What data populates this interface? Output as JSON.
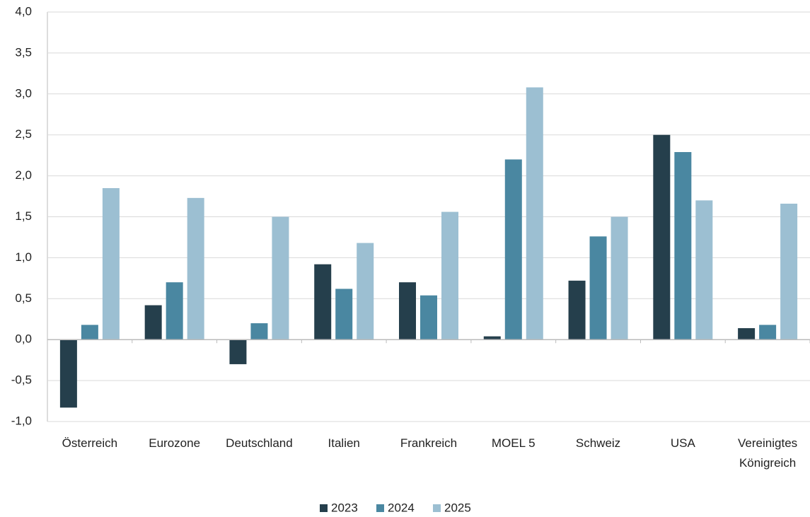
{
  "chart_data": {
    "type": "bar",
    "categories": [
      "Österreich",
      "Eurozone",
      "Deutschland",
      "Italien",
      "Frankreich",
      "MOEL 5",
      "Schweiz",
      "USA",
      "Vereinigtes Königreich"
    ],
    "series": [
      {
        "name": "2023",
        "color": "#253f4c",
        "values": [
          -0.83,
          0.42,
          -0.3,
          0.92,
          0.7,
          0.04,
          0.72,
          2.5,
          0.14
        ]
      },
      {
        "name": "2024",
        "color": "#4a87a1",
        "values": [
          0.18,
          0.7,
          0.2,
          0.62,
          0.54,
          2.2,
          1.26,
          2.29,
          0.18
        ]
      },
      {
        "name": "2025",
        "color": "#9cbfd2",
        "values": [
          1.85,
          1.73,
          1.5,
          1.18,
          1.56,
          3.08,
          1.5,
          1.7,
          1.66
        ]
      }
    ],
    "ylim": [
      -1,
      4
    ],
    "yticks": [
      {
        "value": -1,
        "label": "-1,0"
      },
      {
        "value": -0.5,
        "label": "-0,5"
      },
      {
        "value": 0,
        "label": "0,0"
      },
      {
        "value": 0.5,
        "label": "0,5"
      },
      {
        "value": 1,
        "label": "1,0"
      },
      {
        "value": 1.5,
        "label": "1,5"
      },
      {
        "value": 2,
        "label": "2,0"
      },
      {
        "value": 2.5,
        "label": "2,5"
      },
      {
        "value": 3,
        "label": "3,0"
      },
      {
        "value": 3.5,
        "label": "3,5"
      },
      {
        "value": 4,
        "label": "4,0"
      }
    ],
    "grid": true
  }
}
